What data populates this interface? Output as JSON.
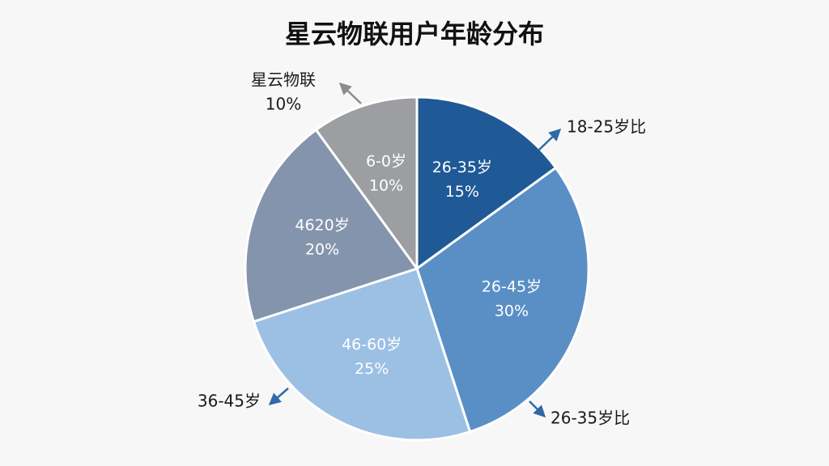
{
  "chart_data": {
    "type": "pie",
    "title": "星云物联用户年龄分布",
    "categories": [
      "26-35岁",
      "26-45岁",
      "46-60岁",
      "4620岁",
      "6-0岁"
    ],
    "values": [
      15,
      30,
      25,
      20,
      10
    ],
    "value_labels": [
      "15%",
      "30%",
      "25%",
      "20%",
      "10%"
    ],
    "colors": [
      "#1f5a96",
      "#5a8fc6",
      "#9cc0e4",
      "#8494ad",
      "#9c9ea2"
    ],
    "annotations": [
      [
        "18-25岁比"
      ],
      [
        "26-35岁比"
      ],
      [
        "36-45岁"
      ],
      [
        "星云物联",
        "10%"
      ]
    ]
  }
}
